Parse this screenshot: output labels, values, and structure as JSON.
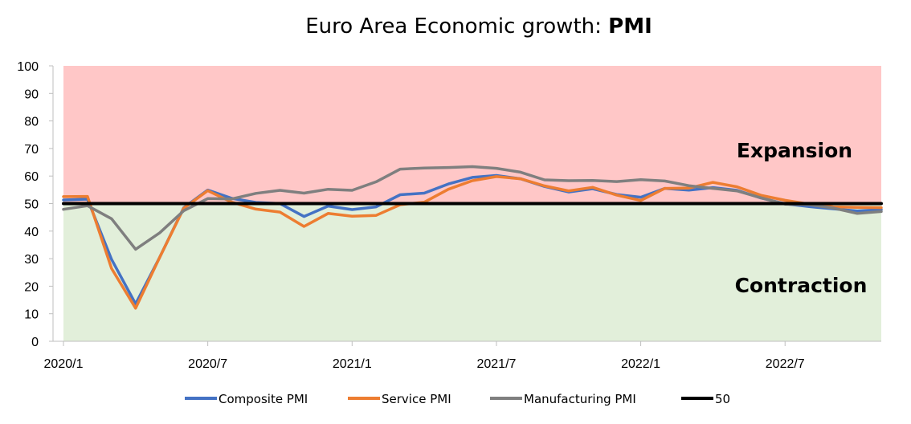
{
  "chart_data": {
    "type": "line",
    "title_prefix": "Euro Area Economic growth: ",
    "title_bold": "PMI",
    "ylim": [
      0,
      100
    ],
    "yticks": [
      0,
      10,
      20,
      30,
      40,
      50,
      60,
      70,
      80,
      90,
      100
    ],
    "xticks": [
      "2020/1",
      "2020/7",
      "2021/1",
      "2021/7",
      "2022/1",
      "2022/7"
    ],
    "x": [
      "2020/1",
      "2020/2",
      "2020/3",
      "2020/4",
      "2020/5",
      "2020/6",
      "2020/7",
      "2020/8",
      "2020/9",
      "2020/10",
      "2020/11",
      "2020/12",
      "2021/1",
      "2021/2",
      "2021/3",
      "2021/4",
      "2021/5",
      "2021/6",
      "2021/7",
      "2021/8",
      "2021/9",
      "2021/10",
      "2021/11",
      "2021/12",
      "2022/1",
      "2022/2",
      "2022/3",
      "2022/4",
      "2022/5",
      "2022/6",
      "2022/7",
      "2022/8",
      "2022/9",
      "2022/10",
      "2022/11"
    ],
    "regions": [
      {
        "label": "Expansion",
        "from": 50,
        "to": 100,
        "color": "#ffc7c7"
      },
      {
        "label": "Contraction",
        "from": 0,
        "to": 50,
        "color": "#e2efda"
      }
    ],
    "series": [
      {
        "name": "Composite PMI",
        "color": "#4472c4",
        "values": [
          51.3,
          51.6,
          29.7,
          13.6,
          30.5,
          48.5,
          54.9,
          51.9,
          50.4,
          50.0,
          45.3,
          49.1,
          47.8,
          48.8,
          53.2,
          53.8,
          57.1,
          59.5,
          60.2,
          59.0,
          56.2,
          54.2,
          55.4,
          53.3,
          52.3,
          55.5,
          54.9,
          55.8,
          54.8,
          52.0,
          49.9,
          48.9,
          48.1,
          47.3,
          47.8
        ]
      },
      {
        "name": "Service PMI",
        "color": "#ed7d31",
        "values": [
          52.5,
          52.6,
          26.4,
          12.0,
          30.5,
          48.3,
          54.7,
          50.5,
          48.0,
          46.9,
          41.7,
          46.4,
          45.4,
          45.7,
          49.6,
          50.5,
          55.2,
          58.3,
          59.8,
          59.0,
          56.4,
          54.6,
          55.9,
          53.1,
          51.1,
          55.5,
          55.6,
          57.7,
          56.1,
          53.0,
          51.2,
          49.8,
          48.8,
          48.6,
          48.5
        ]
      },
      {
        "name": "Manufacturing PMI",
        "color": "#7f7f7f",
        "values": [
          47.9,
          49.2,
          44.5,
          33.4,
          39.4,
          47.4,
          51.8,
          51.7,
          53.7,
          54.8,
          53.8,
          55.2,
          54.8,
          57.9,
          62.5,
          62.9,
          63.1,
          63.4,
          62.8,
          61.4,
          58.6,
          58.3,
          58.4,
          58.0,
          58.7,
          58.2,
          56.5,
          55.5,
          54.6,
          52.1,
          49.8,
          49.6,
          48.4,
          46.4,
          47.1
        ]
      },
      {
        "name": "50",
        "color": "#000000",
        "values": [
          50,
          50,
          50,
          50,
          50,
          50,
          50,
          50,
          50,
          50,
          50,
          50,
          50,
          50,
          50,
          50,
          50,
          50,
          50,
          50,
          50,
          50,
          50,
          50,
          50,
          50,
          50,
          50,
          50,
          50,
          50,
          50,
          50,
          50,
          50
        ]
      }
    ]
  }
}
